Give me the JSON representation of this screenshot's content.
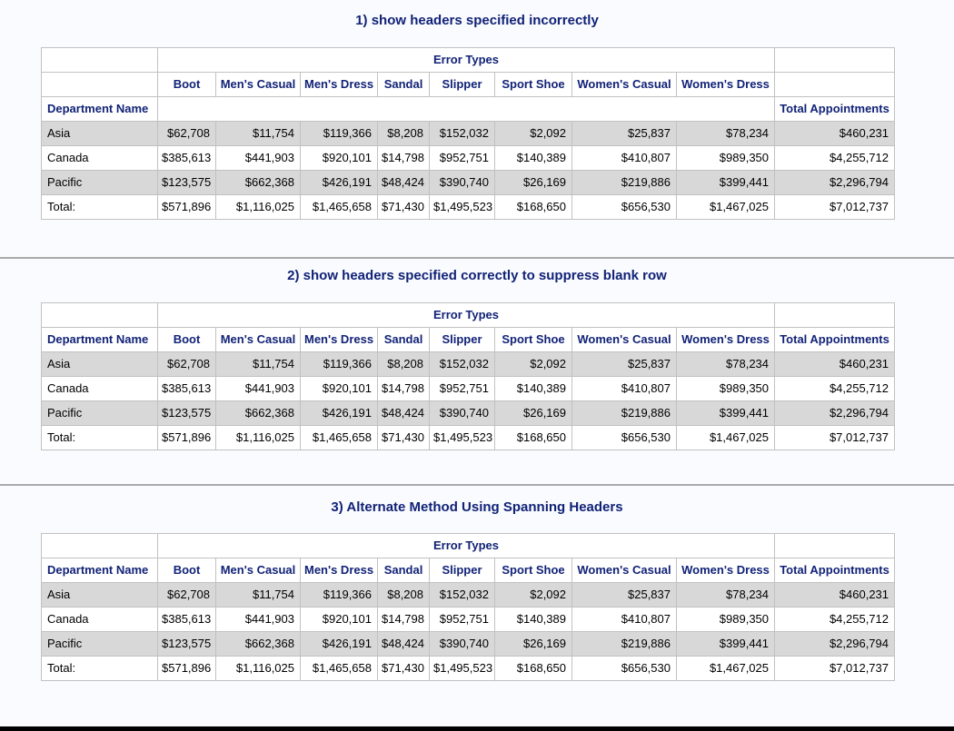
{
  "report": {
    "colors": {
      "page_background": "#FAFBFE",
      "title_text": "#112277",
      "header_text": "#112277",
      "cell_border": "#C1C1C1",
      "stripe_row": "#D8D8D8",
      "separator": "#A9A9A9",
      "bottom_bar": "#000000"
    },
    "sections": [
      {
        "title": "1) show headers specified incorrectly",
        "variant": "blank_row"
      },
      {
        "title": "2) show headers specified correctly to suppress blank row",
        "variant": "suppressed"
      },
      {
        "title": "3) Alternate Method Using Spanning Headers",
        "variant": "spanning"
      }
    ],
    "table": {
      "spanning_header": "Error Types",
      "row_dim_header": "Department Name",
      "total_col_header": "Total Appointments",
      "error_type_columns": [
        "Boot",
        "Men's Casual",
        "Men's Dress",
        "Sandal",
        "Slipper",
        "Sport Shoe",
        "Women's Casual",
        "Women's Dress"
      ],
      "rows": [
        {
          "department": "Asia",
          "values": [
            "$62,708",
            "$11,754",
            "$119,366",
            "$8,208",
            "$152,032",
            "$2,092",
            "$25,837",
            "$78,234"
          ],
          "total": "$460,231"
        },
        {
          "department": "Canada",
          "values": [
            "$385,613",
            "$441,903",
            "$920,101",
            "$14,798",
            "$952,751",
            "$140,389",
            "$410,807",
            "$989,350"
          ],
          "total": "$4,255,712"
        },
        {
          "department": "Pacific",
          "values": [
            "$123,575",
            "$662,368",
            "$426,191",
            "$48,424",
            "$390,740",
            "$26,169",
            "$219,886",
            "$399,441"
          ],
          "total": "$2,296,794"
        },
        {
          "department": "Total:",
          "values": [
            "$571,896",
            "$1,116,025",
            "$1,465,658",
            "$71,430",
            "$1,495,523",
            "$168,650",
            "$656,530",
            "$1,467,025"
          ],
          "total": "$7,012,737"
        }
      ]
    }
  }
}
